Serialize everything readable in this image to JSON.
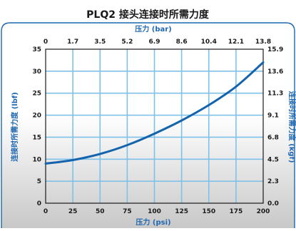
{
  "chart_data": {
    "type": "line",
    "title": "PLQ2 接头连接时所需力度",
    "x_axis": {
      "bottom_label": "压力 (psi)",
      "top_label": "压力 (bar)",
      "range": [
        0,
        200
      ],
      "bottom_ticks": [
        "0",
        "25",
        "50",
        "75",
        "100",
        "125",
        "150",
        "175",
        "200"
      ],
      "top_ticks": [
        "0",
        "1.7",
        "3.5",
        "5.2",
        "6.9",
        "8.6",
        "10.4",
        "12.1",
        "13.8"
      ]
    },
    "y_axis": {
      "left_label": "连接时所需力度 (lbf)",
      "right_label": "连接时所需力度 (kgf)",
      "range": [
        0,
        35
      ],
      "left_ticks": [
        "0",
        "5",
        "10",
        "15",
        "20",
        "25",
        "30",
        "35"
      ],
      "right_ticks": [
        "0.0",
        "2.3",
        "4.5",
        "6.8",
        "9.1",
        "11.3",
        "13.6",
        "15.9"
      ]
    },
    "grid": true,
    "series": [
      {
        "x": [
          0,
          25,
          50,
          75,
          100,
          125,
          150,
          175,
          200
        ],
        "y": [
          9.0,
          9.8,
          11.2,
          13.2,
          15.8,
          18.8,
          22.3,
          26.5,
          32.0
        ]
      }
    ]
  },
  "colors": {
    "frame": "#1f67b1",
    "grid": "#7fc1e8",
    "line": "#1363ad",
    "axis_text": "#1a1a1a",
    "label_text": "#1f67b1",
    "fill_top": "#ffffff",
    "fill_bottom": "#cccccc"
  }
}
